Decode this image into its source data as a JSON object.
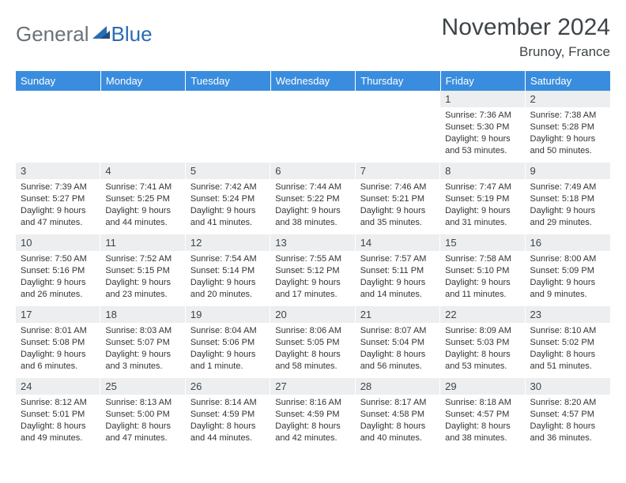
{
  "logo": {
    "general": "General",
    "blue": "Blue"
  },
  "title": "November 2024",
  "location": "Brunoy, France",
  "colors": {
    "header_bg": "#3a8dde",
    "header_text": "#ffffff",
    "daynum_bg": "#eceeef",
    "text": "#333333",
    "logo_gray": "#6a7278",
    "logo_blue": "#2a6cb0"
  },
  "weekdays": [
    "Sunday",
    "Monday",
    "Tuesday",
    "Wednesday",
    "Thursday",
    "Friday",
    "Saturday"
  ],
  "grid": [
    [
      {
        "blank": true
      },
      {
        "blank": true
      },
      {
        "blank": true
      },
      {
        "blank": true
      },
      {
        "blank": true
      },
      {
        "num": "1",
        "sunrise": "Sunrise: 7:36 AM",
        "sunset": "Sunset: 5:30 PM",
        "daylight": "Daylight: 9 hours and 53 minutes."
      },
      {
        "num": "2",
        "sunrise": "Sunrise: 7:38 AM",
        "sunset": "Sunset: 5:28 PM",
        "daylight": "Daylight: 9 hours and 50 minutes."
      }
    ],
    [
      {
        "num": "3",
        "sunrise": "Sunrise: 7:39 AM",
        "sunset": "Sunset: 5:27 PM",
        "daylight": "Daylight: 9 hours and 47 minutes."
      },
      {
        "num": "4",
        "sunrise": "Sunrise: 7:41 AM",
        "sunset": "Sunset: 5:25 PM",
        "daylight": "Daylight: 9 hours and 44 minutes."
      },
      {
        "num": "5",
        "sunrise": "Sunrise: 7:42 AM",
        "sunset": "Sunset: 5:24 PM",
        "daylight": "Daylight: 9 hours and 41 minutes."
      },
      {
        "num": "6",
        "sunrise": "Sunrise: 7:44 AM",
        "sunset": "Sunset: 5:22 PM",
        "daylight": "Daylight: 9 hours and 38 minutes."
      },
      {
        "num": "7",
        "sunrise": "Sunrise: 7:46 AM",
        "sunset": "Sunset: 5:21 PM",
        "daylight": "Daylight: 9 hours and 35 minutes."
      },
      {
        "num": "8",
        "sunrise": "Sunrise: 7:47 AM",
        "sunset": "Sunset: 5:19 PM",
        "daylight": "Daylight: 9 hours and 31 minutes."
      },
      {
        "num": "9",
        "sunrise": "Sunrise: 7:49 AM",
        "sunset": "Sunset: 5:18 PM",
        "daylight": "Daylight: 9 hours and 29 minutes."
      }
    ],
    [
      {
        "num": "10",
        "sunrise": "Sunrise: 7:50 AM",
        "sunset": "Sunset: 5:16 PM",
        "daylight": "Daylight: 9 hours and 26 minutes."
      },
      {
        "num": "11",
        "sunrise": "Sunrise: 7:52 AM",
        "sunset": "Sunset: 5:15 PM",
        "daylight": "Daylight: 9 hours and 23 minutes."
      },
      {
        "num": "12",
        "sunrise": "Sunrise: 7:54 AM",
        "sunset": "Sunset: 5:14 PM",
        "daylight": "Daylight: 9 hours and 20 minutes."
      },
      {
        "num": "13",
        "sunrise": "Sunrise: 7:55 AM",
        "sunset": "Sunset: 5:12 PM",
        "daylight": "Daylight: 9 hours and 17 minutes."
      },
      {
        "num": "14",
        "sunrise": "Sunrise: 7:57 AM",
        "sunset": "Sunset: 5:11 PM",
        "daylight": "Daylight: 9 hours and 14 minutes."
      },
      {
        "num": "15",
        "sunrise": "Sunrise: 7:58 AM",
        "sunset": "Sunset: 5:10 PM",
        "daylight": "Daylight: 9 hours and 11 minutes."
      },
      {
        "num": "16",
        "sunrise": "Sunrise: 8:00 AM",
        "sunset": "Sunset: 5:09 PM",
        "daylight": "Daylight: 9 hours and 9 minutes."
      }
    ],
    [
      {
        "num": "17",
        "sunrise": "Sunrise: 8:01 AM",
        "sunset": "Sunset: 5:08 PM",
        "daylight": "Daylight: 9 hours and 6 minutes."
      },
      {
        "num": "18",
        "sunrise": "Sunrise: 8:03 AM",
        "sunset": "Sunset: 5:07 PM",
        "daylight": "Daylight: 9 hours and 3 minutes."
      },
      {
        "num": "19",
        "sunrise": "Sunrise: 8:04 AM",
        "sunset": "Sunset: 5:06 PM",
        "daylight": "Daylight: 9 hours and 1 minute."
      },
      {
        "num": "20",
        "sunrise": "Sunrise: 8:06 AM",
        "sunset": "Sunset: 5:05 PM",
        "daylight": "Daylight: 8 hours and 58 minutes."
      },
      {
        "num": "21",
        "sunrise": "Sunrise: 8:07 AM",
        "sunset": "Sunset: 5:04 PM",
        "daylight": "Daylight: 8 hours and 56 minutes."
      },
      {
        "num": "22",
        "sunrise": "Sunrise: 8:09 AM",
        "sunset": "Sunset: 5:03 PM",
        "daylight": "Daylight: 8 hours and 53 minutes."
      },
      {
        "num": "23",
        "sunrise": "Sunrise: 8:10 AM",
        "sunset": "Sunset: 5:02 PM",
        "daylight": "Daylight: 8 hours and 51 minutes."
      }
    ],
    [
      {
        "num": "24",
        "sunrise": "Sunrise: 8:12 AM",
        "sunset": "Sunset: 5:01 PM",
        "daylight": "Daylight: 8 hours and 49 minutes."
      },
      {
        "num": "25",
        "sunrise": "Sunrise: 8:13 AM",
        "sunset": "Sunset: 5:00 PM",
        "daylight": "Daylight: 8 hours and 47 minutes."
      },
      {
        "num": "26",
        "sunrise": "Sunrise: 8:14 AM",
        "sunset": "Sunset: 4:59 PM",
        "daylight": "Daylight: 8 hours and 44 minutes."
      },
      {
        "num": "27",
        "sunrise": "Sunrise: 8:16 AM",
        "sunset": "Sunset: 4:59 PM",
        "daylight": "Daylight: 8 hours and 42 minutes."
      },
      {
        "num": "28",
        "sunrise": "Sunrise: 8:17 AM",
        "sunset": "Sunset: 4:58 PM",
        "daylight": "Daylight: 8 hours and 40 minutes."
      },
      {
        "num": "29",
        "sunrise": "Sunrise: 8:18 AM",
        "sunset": "Sunset: 4:57 PM",
        "daylight": "Daylight: 8 hours and 38 minutes."
      },
      {
        "num": "30",
        "sunrise": "Sunrise: 8:20 AM",
        "sunset": "Sunset: 4:57 PM",
        "daylight": "Daylight: 8 hours and 36 minutes."
      }
    ]
  ]
}
